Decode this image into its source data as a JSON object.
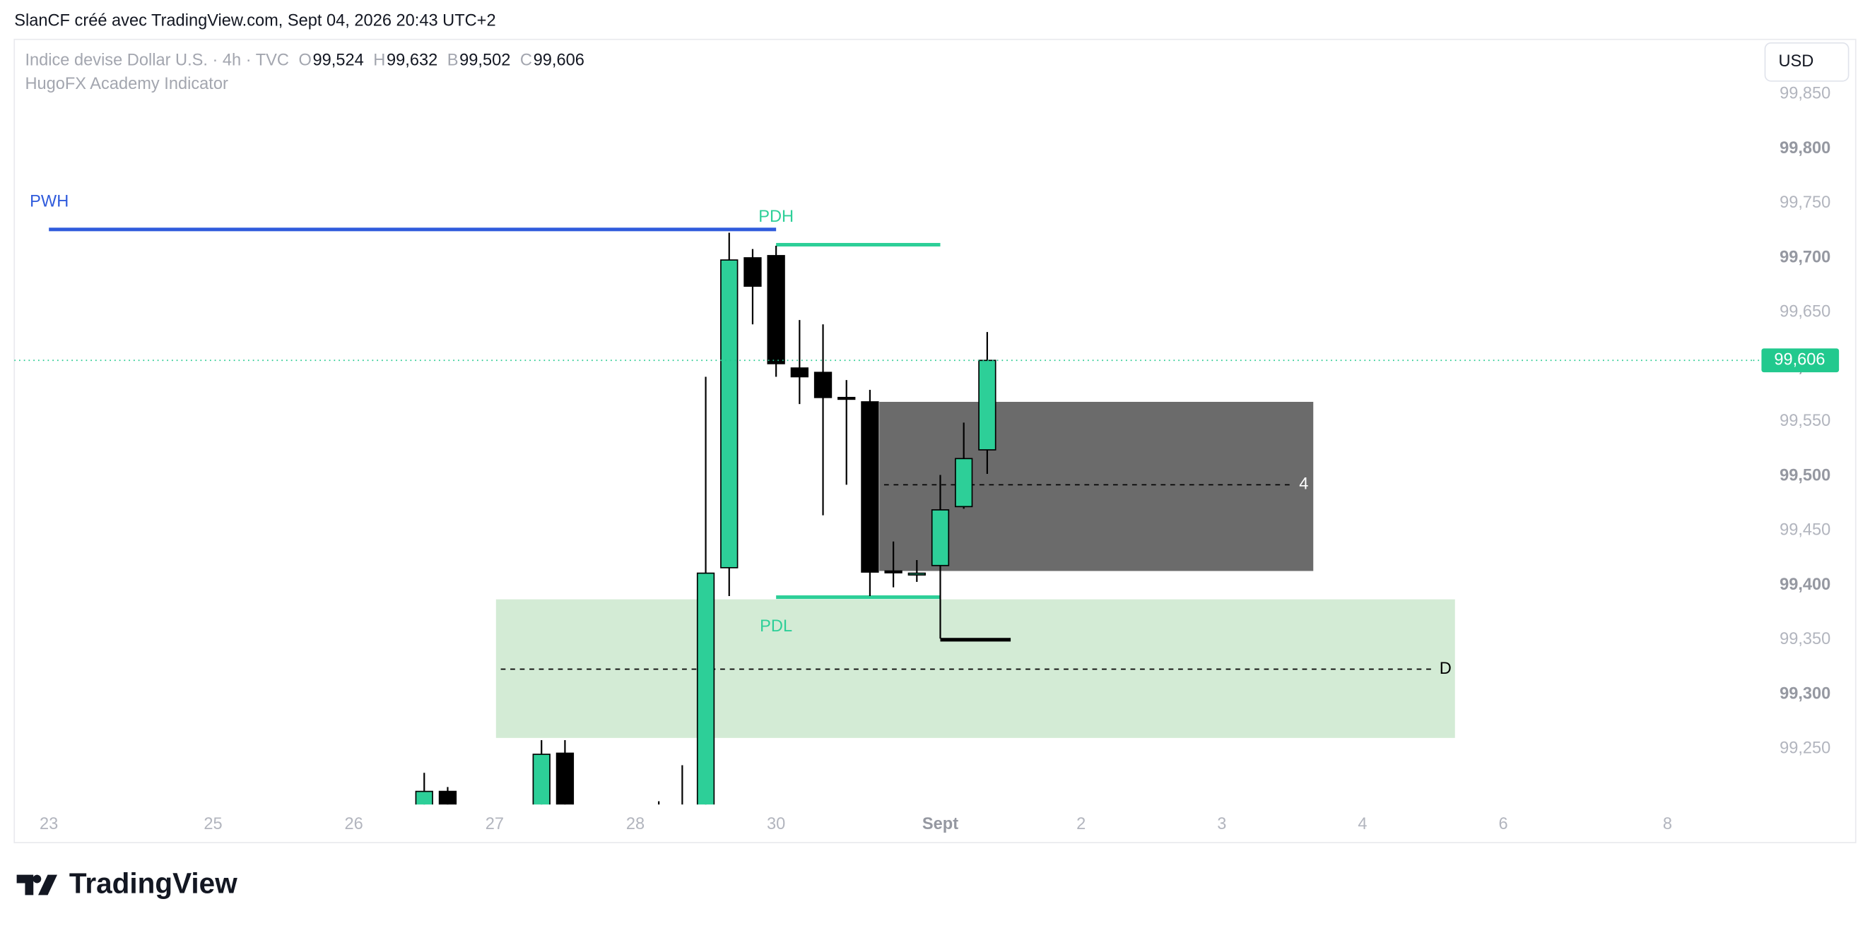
{
  "header": {
    "credit": "SlanCF créé avec TradingView.com, Sept 04, 2026 20:43 UTC+2",
    "brand": "TradingView"
  },
  "chart_data": {
    "type": "candlestick",
    "title": "Indice devise Dollar U.S. · 4h · TVC",
    "indicator": "HugoFX Academy Indicator",
    "currency": "USD",
    "ohlc_legend": [
      {
        "key": "O",
        "value": "99,524"
      },
      {
        "key": "H",
        "value": "99,632"
      },
      {
        "key": "B",
        "value": "99,502"
      },
      {
        "key": "C",
        "value": "99,606"
      }
    ],
    "x": [
      16,
      17,
      21,
      22,
      26,
      27,
      28,
      29,
      30,
      31,
      32,
      33,
      34,
      35,
      36,
      37,
      38,
      39,
      40
    ],
    "open": [
      99.19,
      99.211,
      99.17,
      99.246,
      99.19,
      99.18,
      99.15,
      99.416,
      99.7,
      99.702,
      99.599,
      99.595,
      99.572,
      99.568,
      99.413,
      99.41,
      99.418,
      99.472,
      99.524
    ],
    "high": [
      99.228,
      99.215,
      99.258,
      99.258,
      99.202,
      99.235,
      99.591,
      99.723,
      99.708,
      99.711,
      99.643,
      99.639,
      99.588,
      99.579,
      99.44,
      99.423,
      99.501,
      99.549,
      99.632
    ],
    "low": [
      99.17,
      99.17,
      99.16,
      99.17,
      99.18,
      99.17,
      99.14,
      99.39,
      99.639,
      99.591,
      99.566,
      99.464,
      99.492,
      99.39,
      99.398,
      99.403,
      99.351,
      99.47,
      99.502
    ],
    "close": [
      99.211,
      99.18,
      99.245,
      99.18,
      99.195,
      99.19,
      99.411,
      99.698,
      99.674,
      99.603,
      99.591,
      99.572,
      99.571,
      99.412,
      99.412,
      99.411,
      99.469,
      99.516,
      99.606
    ],
    "up_color": "#2dcf98",
    "down_color": "#000000",
    "xlim": [
      -1.474,
      72.65
    ],
    "xticks": [
      {
        "value": 0,
        "label": "23"
      },
      {
        "value": 7,
        "label": "25"
      },
      {
        "value": 13,
        "label": "26"
      },
      {
        "value": 19,
        "label": "27"
      },
      {
        "value": 25,
        "label": "28"
      },
      {
        "value": 31,
        "label": "30"
      },
      {
        "value": 38,
        "label": "Sept"
      },
      {
        "value": 44,
        "label": "2"
      },
      {
        "value": 50,
        "label": "3"
      },
      {
        "value": 56,
        "label": "4"
      },
      {
        "value": 62,
        "label": "6"
      },
      {
        "value": 69,
        "label": "8"
      }
    ],
    "ylim": [
      99.199,
      99.898
    ],
    "yticks": [
      {
        "value": 99.25,
        "label": "99,250"
      },
      {
        "value": 99.3,
        "label": "99,300"
      },
      {
        "value": 99.35,
        "label": "99,350"
      },
      {
        "value": 99.4,
        "label": "99,400"
      },
      {
        "value": 99.45,
        "label": "99,450"
      },
      {
        "value": 99.5,
        "label": "99,500"
      },
      {
        "value": 99.55,
        "label": "99,550"
      },
      {
        "value": 99.6,
        "label": "99,600"
      },
      {
        "value": 99.65,
        "label": "99,650"
      },
      {
        "value": 99.7,
        "label": "99,700"
      },
      {
        "value": 99.75,
        "label": "99,750"
      },
      {
        "value": 99.8,
        "label": "99,800"
      },
      {
        "value": 99.85,
        "label": "99,850"
      }
    ],
    "last_price": {
      "value": 99.606,
      "label": "99,606",
      "color": "#22c98e"
    },
    "levels": [
      {
        "name": "PWH",
        "value": 99.726,
        "x": [
          0,
          31
        ],
        "color": "#2f5bdc"
      },
      {
        "name": "PDH",
        "value": 99.712,
        "x": [
          31,
          38
        ],
        "color": "#2dcf98"
      },
      {
        "name": "PDL",
        "value": 99.389,
        "x": [
          31,
          38
        ],
        "color": "#2dcf98"
      },
      {
        "value": 99.35,
        "x": [
          38,
          41
        ],
        "color": "#000000"
      }
    ],
    "zones": [
      {
        "label": "4",
        "top": 99.568,
        "bottom": 99.413,
        "mid": 99.492,
        "x": [
          35.4,
          53.9
        ],
        "color": "#6b6b6b",
        "label_color": "#ffffff"
      },
      {
        "label": "D",
        "top": 99.387,
        "bottom": 99.26,
        "mid": 99.323,
        "x": [
          19.06,
          59.94
        ],
        "color": "#d3ebd5",
        "label_color": "#000000"
      }
    ]
  }
}
